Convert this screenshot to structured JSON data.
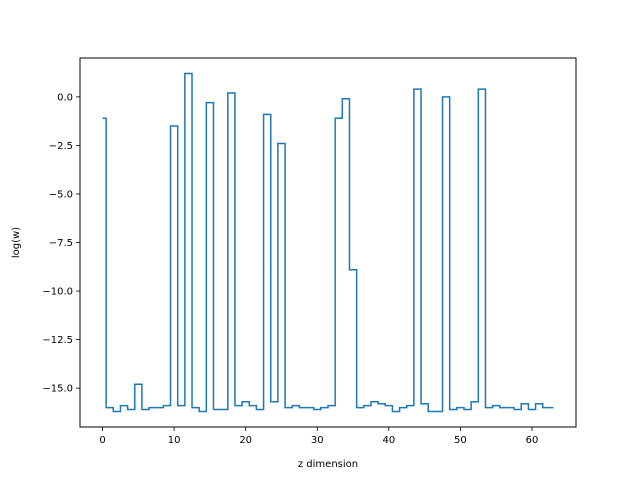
{
  "chart_data": {
    "type": "line",
    "line_style": "step-mid",
    "title": "",
    "xlabel": "z dimension",
    "ylabel": "log(w)",
    "xlim": [
      -3.15,
      66.15
    ],
    "ylim": [
      -17.0,
      2.0
    ],
    "xticks": [
      0,
      10,
      20,
      30,
      40,
      50,
      60
    ],
    "xtick_labels": [
      "0",
      "10",
      "20",
      "30",
      "40",
      "50",
      "60"
    ],
    "yticks": [
      0.0,
      -2.5,
      -5.0,
      -7.5,
      -10.0,
      -12.5,
      -15.0
    ],
    "ytick_labels": [
      "0.0",
      "−2.5",
      "−5.0",
      "−7.5",
      "−10.0",
      "−12.5",
      "−15.0"
    ],
    "grid": false,
    "series_color": "#1f77b4",
    "x": [
      0,
      1,
      2,
      3,
      4,
      5,
      6,
      7,
      8,
      9,
      10,
      11,
      12,
      13,
      14,
      15,
      16,
      17,
      18,
      19,
      20,
      21,
      22,
      23,
      24,
      25,
      26,
      27,
      28,
      29,
      30,
      31,
      32,
      33,
      34,
      35,
      36,
      37,
      38,
      39,
      40,
      41,
      42,
      43,
      44,
      45,
      46,
      47,
      48,
      49,
      50,
      51,
      52,
      53,
      54,
      55,
      56,
      57,
      58,
      59,
      60,
      61,
      62,
      63
    ],
    "values": [
      -1.1,
      -16.0,
      -16.2,
      -15.9,
      -16.1,
      -14.8,
      -16.1,
      -16.0,
      -16.0,
      -15.9,
      -1.5,
      -15.9,
      1.2,
      -16.0,
      -16.2,
      -0.3,
      -16.1,
      -16.1,
      0.2,
      -15.9,
      -15.7,
      -15.9,
      -16.1,
      -0.9,
      -15.7,
      -2.4,
      -16.0,
      -15.9,
      -16.0,
      -16.0,
      -16.1,
      -16.0,
      -15.9,
      -1.1,
      -0.1,
      -8.9,
      -16.0,
      -15.9,
      -15.7,
      -15.8,
      -15.9,
      -16.2,
      -16.0,
      -15.9,
      0.4,
      -15.8,
      -16.2,
      -16.2,
      0.0,
      -16.1,
      -16.0,
      -16.1,
      -15.7,
      0.4,
      -16.0,
      -15.9,
      -16.0,
      -16.0,
      -16.1,
      -15.8,
      -16.1,
      -15.8,
      -16.0,
      -16.0
    ]
  }
}
